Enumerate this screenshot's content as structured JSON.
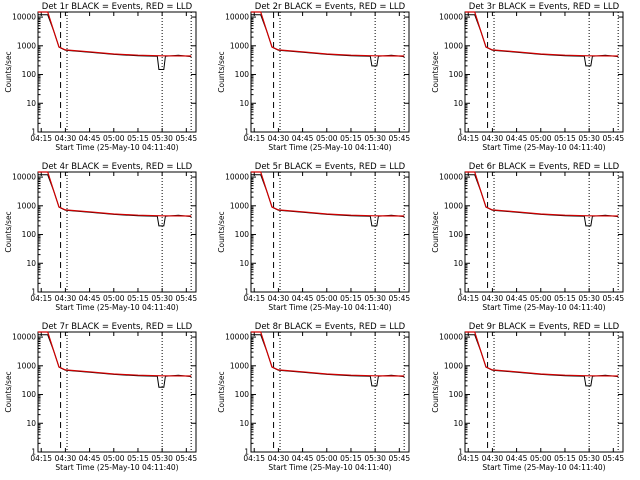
{
  "colors": {
    "events": "#000000",
    "lld": "#d00000",
    "frame": "#000000",
    "background": "#ffffff"
  },
  "chart_data": {
    "type": "line",
    "title_suffix": " BLACK = Events, RED = LLD",
    "xlabel": "Start Time (25-May-10 04:11:40)",
    "ylabel": "Counts/sec",
    "y_scale": "log",
    "ylim": [
      1,
      15000
    ],
    "y_ticks": [
      1,
      10,
      100,
      1000,
      10000
    ],
    "y_tick_labels": [
      "1",
      "10",
      "100",
      "1000",
      "10000"
    ],
    "xlim": [
      "04:13",
      "05:51"
    ],
    "x_ticks": [
      "04:15",
      "04:30",
      "04:45",
      "05:00",
      "05:15",
      "05:30",
      "05:45"
    ],
    "markers": {
      "dashed_line_at": "04:27",
      "dotted_lines_at": [
        "04:31",
        "05:30",
        "05:48"
      ]
    },
    "panels": [
      {
        "title": "Det 1r",
        "events": [
          [
            "04:13",
            12000
          ],
          [
            "04:19",
            12000
          ],
          [
            "04:23",
            3000
          ],
          [
            "04:26",
            900
          ],
          [
            "04:30",
            700
          ],
          [
            "04:45",
            600
          ],
          [
            "05:00",
            500
          ],
          [
            "05:15",
            450
          ],
          [
            "05:27",
            430
          ],
          [
            "05:28",
            150
          ],
          [
            "05:31",
            150
          ],
          [
            "05:32",
            430
          ],
          [
            "05:40",
            470
          ],
          [
            "05:48",
            420
          ]
        ],
        "lld": [
          [
            "04:13",
            15000
          ],
          [
            "04:19",
            15000
          ],
          [
            "04:23",
            3000
          ],
          [
            "04:26",
            900
          ],
          [
            "04:30",
            720
          ],
          [
            "04:45",
            620
          ],
          [
            "05:00",
            520
          ],
          [
            "05:15",
            470
          ],
          [
            "05:30",
            450
          ],
          [
            "05:48",
            440
          ]
        ]
      },
      {
        "title": "Det 2r",
        "events": [
          [
            "04:13",
            12000
          ],
          [
            "04:19",
            12000
          ],
          [
            "04:23",
            3000
          ],
          [
            "04:26",
            900
          ],
          [
            "04:30",
            700
          ],
          [
            "04:45",
            600
          ],
          [
            "05:00",
            500
          ],
          [
            "05:15",
            450
          ],
          [
            "05:27",
            430
          ],
          [
            "05:28",
            200
          ],
          [
            "05:31",
            200
          ],
          [
            "05:32",
            430
          ],
          [
            "05:40",
            470
          ],
          [
            "05:48",
            420
          ]
        ],
        "lld": [
          [
            "04:13",
            15000
          ],
          [
            "04:19",
            15000
          ],
          [
            "04:23",
            3000
          ],
          [
            "04:26",
            900
          ],
          [
            "04:30",
            720
          ],
          [
            "04:45",
            620
          ],
          [
            "05:00",
            520
          ],
          [
            "05:15",
            470
          ],
          [
            "05:30",
            450
          ],
          [
            "05:48",
            440
          ]
        ]
      },
      {
        "title": "Det 3r",
        "events": [
          [
            "04:13",
            12000
          ],
          [
            "04:19",
            12000
          ],
          [
            "04:23",
            3000
          ],
          [
            "04:26",
            900
          ],
          [
            "04:30",
            700
          ],
          [
            "04:45",
            600
          ],
          [
            "05:00",
            500
          ],
          [
            "05:15",
            450
          ],
          [
            "05:27",
            430
          ],
          [
            "05:28",
            200
          ],
          [
            "05:31",
            200
          ],
          [
            "05:32",
            430
          ],
          [
            "05:40",
            470
          ],
          [
            "05:48",
            420
          ]
        ],
        "lld": [
          [
            "04:13",
            15000
          ],
          [
            "04:19",
            15000
          ],
          [
            "04:23",
            3000
          ],
          [
            "04:26",
            900
          ],
          [
            "04:30",
            720
          ],
          [
            "04:45",
            620
          ],
          [
            "05:00",
            520
          ],
          [
            "05:15",
            470
          ],
          [
            "05:30",
            450
          ],
          [
            "05:48",
            440
          ]
        ]
      },
      {
        "title": "Det 4r",
        "events": [
          [
            "04:13",
            12000
          ],
          [
            "04:19",
            12000
          ],
          [
            "04:23",
            3000
          ],
          [
            "04:26",
            900
          ],
          [
            "04:30",
            700
          ],
          [
            "04:45",
            600
          ],
          [
            "05:00",
            500
          ],
          [
            "05:15",
            450
          ],
          [
            "05:27",
            430
          ],
          [
            "05:28",
            200
          ],
          [
            "05:31",
            200
          ],
          [
            "05:32",
            430
          ],
          [
            "05:40",
            470
          ],
          [
            "05:48",
            420
          ]
        ],
        "lld": [
          [
            "04:13",
            15000
          ],
          [
            "04:19",
            15000
          ],
          [
            "04:23",
            3000
          ],
          [
            "04:26",
            900
          ],
          [
            "04:30",
            720
          ],
          [
            "04:45",
            620
          ],
          [
            "05:00",
            520
          ],
          [
            "05:15",
            470
          ],
          [
            "05:30",
            450
          ],
          [
            "05:48",
            440
          ]
        ]
      },
      {
        "title": "Det 5r",
        "events": [
          [
            "04:13",
            12000
          ],
          [
            "04:19",
            12000
          ],
          [
            "04:23",
            3000
          ],
          [
            "04:26",
            900
          ],
          [
            "04:30",
            700
          ],
          [
            "04:45",
            600
          ],
          [
            "05:00",
            500
          ],
          [
            "05:15",
            450
          ],
          [
            "05:27",
            430
          ],
          [
            "05:28",
            200
          ],
          [
            "05:31",
            200
          ],
          [
            "05:32",
            430
          ],
          [
            "05:40",
            470
          ],
          [
            "05:48",
            420
          ]
        ],
        "lld": [
          [
            "04:13",
            15000
          ],
          [
            "04:19",
            15000
          ],
          [
            "04:23",
            3000
          ],
          [
            "04:26",
            900
          ],
          [
            "04:30",
            720
          ],
          [
            "04:45",
            620
          ],
          [
            "05:00",
            520
          ],
          [
            "05:15",
            470
          ],
          [
            "05:30",
            450
          ],
          [
            "05:48",
            440
          ]
        ]
      },
      {
        "title": "Det 6r",
        "events": [
          [
            "04:13",
            12000
          ],
          [
            "04:19",
            12000
          ],
          [
            "04:23",
            3000
          ],
          [
            "04:26",
            900
          ],
          [
            "04:30",
            700
          ],
          [
            "04:45",
            600
          ],
          [
            "05:00",
            500
          ],
          [
            "05:15",
            450
          ],
          [
            "05:27",
            430
          ],
          [
            "05:28",
            200
          ],
          [
            "05:31",
            200
          ],
          [
            "05:32",
            430
          ],
          [
            "05:40",
            470
          ],
          [
            "05:48",
            420
          ]
        ],
        "lld": [
          [
            "04:13",
            15000
          ],
          [
            "04:19",
            15000
          ],
          [
            "04:23",
            3000
          ],
          [
            "04:26",
            900
          ],
          [
            "04:30",
            720
          ],
          [
            "04:45",
            620
          ],
          [
            "05:00",
            520
          ],
          [
            "05:15",
            470
          ],
          [
            "05:30",
            450
          ],
          [
            "05:48",
            440
          ]
        ]
      },
      {
        "title": "Det 7r",
        "events": [
          [
            "04:13",
            12000
          ],
          [
            "04:19",
            12000
          ],
          [
            "04:23",
            3000
          ],
          [
            "04:26",
            900
          ],
          [
            "04:30",
            700
          ],
          [
            "04:45",
            600
          ],
          [
            "05:00",
            500
          ],
          [
            "05:15",
            450
          ],
          [
            "05:27",
            430
          ],
          [
            "05:28",
            180
          ],
          [
            "05:31",
            180
          ],
          [
            "05:32",
            430
          ],
          [
            "05:40",
            470
          ],
          [
            "05:48",
            420
          ]
        ],
        "lld": [
          [
            "04:13",
            15000
          ],
          [
            "04:19",
            15000
          ],
          [
            "04:23",
            3000
          ],
          [
            "04:26",
            900
          ],
          [
            "04:30",
            720
          ],
          [
            "04:45",
            620
          ],
          [
            "05:00",
            520
          ],
          [
            "05:15",
            470
          ],
          [
            "05:30",
            450
          ],
          [
            "05:48",
            440
          ]
        ]
      },
      {
        "title": "Det 8r",
        "events": [
          [
            "04:13",
            12000
          ],
          [
            "04:19",
            12000
          ],
          [
            "04:23",
            3000
          ],
          [
            "04:26",
            900
          ],
          [
            "04:30",
            700
          ],
          [
            "04:45",
            600
          ],
          [
            "05:00",
            500
          ],
          [
            "05:15",
            450
          ],
          [
            "05:27",
            430
          ],
          [
            "05:28",
            200
          ],
          [
            "05:31",
            200
          ],
          [
            "05:32",
            430
          ],
          [
            "05:40",
            470
          ],
          [
            "05:48",
            420
          ]
        ],
        "lld": [
          [
            "04:13",
            15000
          ],
          [
            "04:19",
            15000
          ],
          [
            "04:23",
            3000
          ],
          [
            "04:26",
            900
          ],
          [
            "04:30",
            720
          ],
          [
            "04:45",
            620
          ],
          [
            "05:00",
            520
          ],
          [
            "05:15",
            470
          ],
          [
            "05:30",
            450
          ],
          [
            "05:48",
            440
          ]
        ]
      },
      {
        "title": "Det 9r",
        "events": [
          [
            "04:13",
            12000
          ],
          [
            "04:19",
            12000
          ],
          [
            "04:23",
            3000
          ],
          [
            "04:26",
            900
          ],
          [
            "04:30",
            700
          ],
          [
            "04:45",
            600
          ],
          [
            "05:00",
            500
          ],
          [
            "05:15",
            450
          ],
          [
            "05:27",
            430
          ],
          [
            "05:28",
            200
          ],
          [
            "05:31",
            200
          ],
          [
            "05:32",
            430
          ],
          [
            "05:40",
            470
          ],
          [
            "05:48",
            420
          ]
        ],
        "lld": [
          [
            "04:13",
            15000
          ],
          [
            "04:19",
            15000
          ],
          [
            "04:23",
            3000
          ],
          [
            "04:26",
            900
          ],
          [
            "04:30",
            720
          ],
          [
            "04:45",
            620
          ],
          [
            "05:00",
            520
          ],
          [
            "05:15",
            470
          ],
          [
            "05:30",
            450
          ],
          [
            "05:48",
            440
          ]
        ]
      }
    ]
  }
}
